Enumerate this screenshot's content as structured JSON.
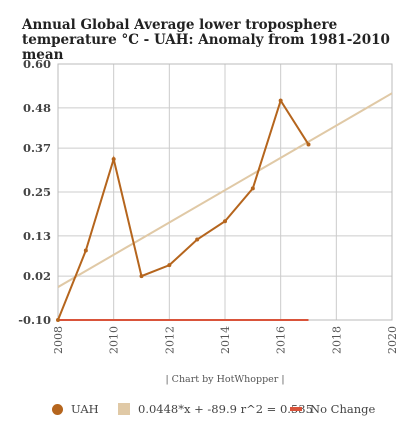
{
  "chart_data": {
    "type": "line",
    "title": "Annual Global Average lower troposphere temperature °C - UAH: Anomaly from 1981-2010 mean",
    "xlabel": "",
    "ylabel": "",
    "xlim": [
      2008,
      2020
    ],
    "ylim": [
      -0.1,
      0.6
    ],
    "x_ticks": [
      2008,
      2010,
      2012,
      2014,
      2016,
      2018,
      2020
    ],
    "y_ticks": [
      -0.1,
      0.02,
      0.13,
      0.25,
      0.37,
      0.48,
      0.6
    ],
    "y_tick_labels": [
      "-0.10",
      "0.02",
      "0.13",
      "0.25",
      "0.37",
      "0.48",
      "0.60"
    ],
    "grid": true,
    "legend_position": "bottom",
    "series": [
      {
        "name": "UAH",
        "type": "line",
        "color": "#b5651d",
        "x": [
          2008,
          2009,
          2010,
          2011,
          2012,
          2013,
          2014,
          2015,
          2016,
          2017
        ],
        "y": [
          -0.1,
          0.09,
          0.34,
          0.02,
          0.05,
          0.12,
          0.17,
          0.26,
          0.5,
          0.38
        ]
      },
      {
        "name": "0.0448*x + -89.9 r^2 = 0.535",
        "type": "trendline",
        "color": "#e0c9a6",
        "x": [
          2008,
          2020
        ],
        "y": [
          -0.01,
          0.52
        ]
      },
      {
        "name": "No Change",
        "type": "line",
        "color": "#d9533a",
        "x": [
          2008,
          2017
        ],
        "y": [
          -0.1,
          -0.1
        ]
      }
    ]
  },
  "credit": "| Chart by HotWhopper |"
}
